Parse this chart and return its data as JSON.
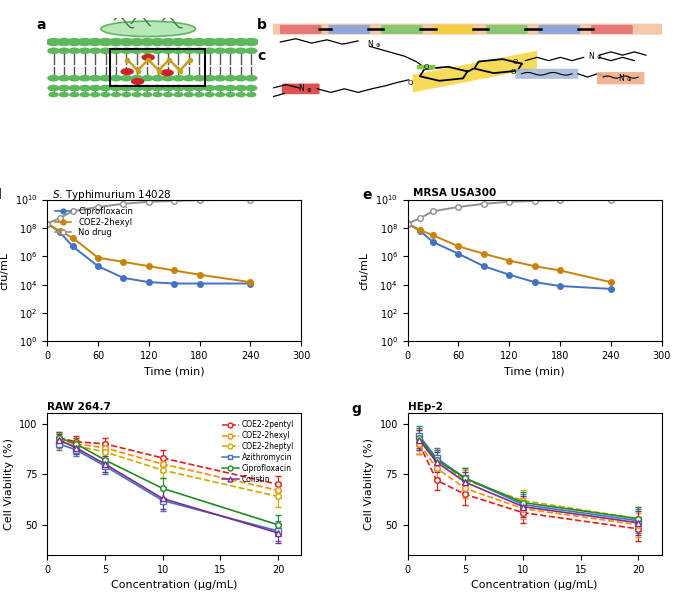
{
  "panel_d": {
    "title": "S. Typhimurium 14028",
    "xlabel": "Time (min)",
    "ylabel": "cfu/mL",
    "time": [
      0,
      15,
      30,
      60,
      90,
      120,
      150,
      180,
      240
    ],
    "ciprofloxacin": [
      200000000.0,
      50000000.0,
      5000000.0,
      200000.0,
      30000.0,
      15000.0,
      12000.0,
      12000.0,
      12000.0
    ],
    "coe2hexyl": [
      200000000.0,
      60000000.0,
      20000000.0,
      800000.0,
      400000.0,
      200000.0,
      100000.0,
      50000.0,
      15000.0
    ],
    "nodrug": [
      200000000.0,
      500000000.0,
      1500000000.0,
      3000000000.0,
      5000000000.0,
      7000000000.0,
      8000000000.0,
      9000000000.0,
      10000000000.0
    ],
    "ciprofloxacin_color": "#4472c4",
    "coe2hexyl_color": "#c9820a",
    "nodrug_color": "#909090",
    "ylim_min": 1,
    "ylim_max": 10000000000.0,
    "xlim": [
      0,
      300
    ]
  },
  "panel_e": {
    "title": "MRSA USA300",
    "xlabel": "Time (min)",
    "ylabel": "cfu/mL",
    "time": [
      0,
      15,
      30,
      60,
      90,
      120,
      150,
      180,
      240
    ],
    "ciprofloxacin": [
      200000000.0,
      60000000.0,
      10000000.0,
      1500000.0,
      200000.0,
      50000.0,
      15000.0,
      8000.0,
      5000.0
    ],
    "coe2hexyl": [
      200000000.0,
      70000000.0,
      30000000.0,
      5000000.0,
      1500000.0,
      500000.0,
      200000.0,
      100000.0,
      15000.0
    ],
    "nodrug": [
      200000000.0,
      500000000.0,
      1500000000.0,
      3000000000.0,
      5000000000.0,
      7000000000.0,
      8000000000.0,
      9000000000.0,
      10000000000.0
    ],
    "ciprofloxacin_color": "#4472c4",
    "coe2hexyl_color": "#c9820a",
    "nodrug_color": "#909090",
    "ylim_min": 1,
    "ylim_max": 10000000000.0,
    "xlim": [
      0,
      300
    ]
  },
  "panel_f": {
    "title": "RAW 264.7",
    "xlabel": "Concentration (μg/mL)",
    "ylabel": "Cell Viability (%)",
    "conc": [
      1,
      2.5,
      5,
      10,
      20
    ],
    "coe2pentyl": [
      93,
      91,
      90,
      83,
      70
    ],
    "coe2hexyl": [
      92,
      90,
      88,
      80,
      67
    ],
    "coe2heptyl": [
      91,
      89,
      86,
      77,
      64
    ],
    "azithromycin": [
      90,
      87,
      79,
      62,
      47
    ],
    "ciprofloxacin": [
      93,
      90,
      82,
      68,
      50
    ],
    "colistin": [
      92,
      88,
      80,
      63,
      46
    ],
    "coe2pentyl_err": [
      3,
      3,
      3,
      4,
      4
    ],
    "coe2hexyl_err": [
      3,
      3,
      3,
      4,
      4
    ],
    "coe2heptyl_err": [
      3,
      3,
      4,
      4,
      5
    ],
    "azithromycin_err": [
      3,
      3,
      4,
      5,
      5
    ],
    "ciprofloxacin_err": [
      3,
      3,
      4,
      5,
      5
    ],
    "colistin_err": [
      3,
      3,
      4,
      5,
      5
    ],
    "ylim": [
      35,
      105
    ],
    "xlim": [
      0,
      22
    ]
  },
  "panel_g": {
    "title": "HEp-2",
    "xlabel": "Concentration (μg/mL)",
    "ylabel": "Cell Viability (%)",
    "conc": [
      1,
      2.5,
      5,
      10,
      20
    ],
    "coe2pentyl": [
      90,
      72,
      65,
      56,
      48
    ],
    "coe2hexyl": [
      90,
      78,
      68,
      58,
      50
    ],
    "coe2heptyl": [
      92,
      82,
      72,
      62,
      53
    ],
    "azithromycin": [
      94,
      83,
      73,
      60,
      52
    ],
    "ciprofloxacin": [
      93,
      82,
      73,
      61,
      53
    ],
    "colistin": [
      92,
      81,
      71,
      59,
      51
    ],
    "coe2pentyl_err": [
      5,
      5,
      5,
      5,
      6
    ],
    "coe2hexyl_err": [
      5,
      5,
      5,
      5,
      6
    ],
    "coe2heptyl_err": [
      5,
      5,
      5,
      5,
      6
    ],
    "azithromycin_err": [
      5,
      5,
      5,
      5,
      6
    ],
    "ciprofloxacin_err": [
      5,
      5,
      5,
      5,
      6
    ],
    "colistin_err": [
      5,
      5,
      5,
      5,
      6
    ],
    "ylim": [
      35,
      105
    ],
    "xlim": [
      0,
      22
    ]
  },
  "colors": {
    "coe2pentyl": "#e41a1c",
    "coe2hexyl": "#ff8c00",
    "coe2heptyl": "#ccaa00",
    "azithromycin": "#4472c4",
    "ciprofloxacin": "#228b22",
    "colistin": "#7b2d8b"
  }
}
